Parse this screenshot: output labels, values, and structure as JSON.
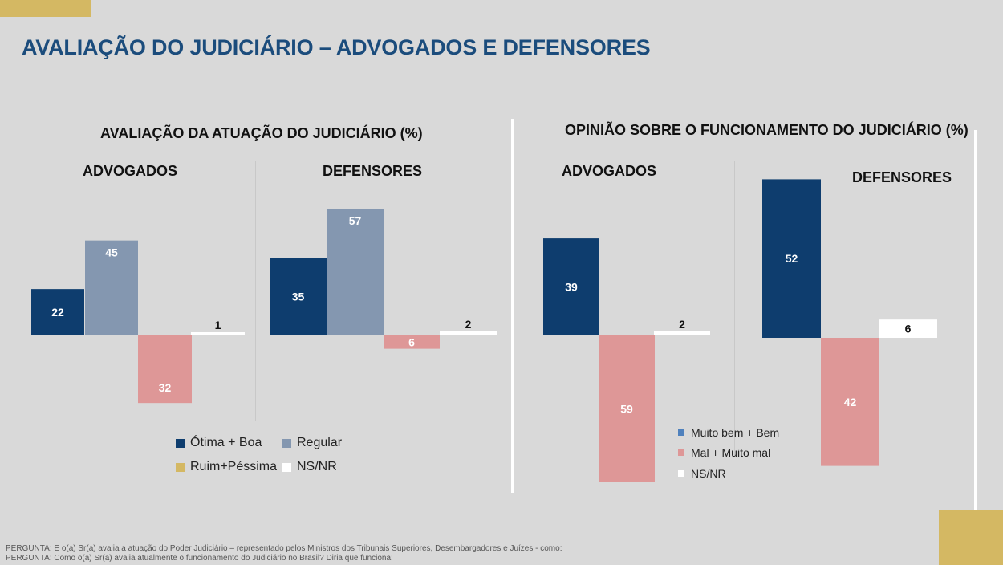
{
  "title": "AVALIAÇÃO DO JUDICIÁRIO – ADVOGADOS E DEFENSORES",
  "colors": {
    "navy": "#0e3d6e",
    "steel": "#8497b0",
    "pink": "#de9797",
    "white": "#ffffff",
    "gold": "#d4b863",
    "blue_light": "#4f81bd"
  },
  "chart_data": [
    {
      "type": "bar",
      "title": "AVALIAÇÃO DA ATUAÇÃO DO JUDICIÁRIO (%)",
      "panels": [
        {
          "name": "ADVOGADOS",
          "bars": [
            {
              "series": "Ótima + Boa",
              "value": 22,
              "direction": "up"
            },
            {
              "series": "Regular",
              "value": 45,
              "direction": "up"
            },
            {
              "series": "Ruim+Péssima",
              "value": 32,
              "direction": "down"
            },
            {
              "series": "NS/NR",
              "value": 1,
              "direction": "up"
            }
          ]
        },
        {
          "name": "DEFENSORES",
          "bars": [
            {
              "series": "Ótima + Boa",
              "value": 35,
              "direction": "up"
            },
            {
              "series": "Regular",
              "value": 57,
              "direction": "up"
            },
            {
              "series": "Ruim+Péssima",
              "value": 6,
              "direction": "down"
            },
            {
              "series": "NS/NR",
              "value": 2,
              "direction": "up"
            }
          ]
        }
      ],
      "legend": [
        {
          "label": "Ótima + Boa",
          "color": "#0e3d6e"
        },
        {
          "label": "Regular",
          "color": "#8497b0"
        },
        {
          "label": "Ruim+Péssima",
          "color": "#d4b863"
        },
        {
          "label": "NS/NR",
          "color": "#ffffff"
        }
      ],
      "legend_position": "bottom"
    },
    {
      "type": "bar",
      "title": "OPINIÃO SOBRE O FUNCIONAMENTO DO JUDICIÁRIO (%)",
      "panels": [
        {
          "name": "ADVOGADOS",
          "bars": [
            {
              "series": "Muito bem + Bem",
              "value": 39,
              "direction": "up"
            },
            {
              "series": "Mal + Muito mal",
              "value": 59,
              "direction": "down"
            },
            {
              "series": "NS/NR",
              "value": 2,
              "direction": "up"
            }
          ]
        },
        {
          "name": "DEFENSORES",
          "bars": [
            {
              "series": "Muito bem + Bem",
              "value": 52,
              "direction": "up"
            },
            {
              "series": "Mal + Muito mal",
              "value": 42,
              "direction": "down"
            },
            {
              "series": "NS/NR",
              "value": 6,
              "direction": "up"
            }
          ]
        }
      ],
      "legend": [
        {
          "label": "Muito bem + Bem",
          "color": "#4f81bd"
        },
        {
          "label": "Mal + Muito mal",
          "color": "#de9797"
        },
        {
          "label": "NS/NR",
          "color": "#ffffff"
        }
      ],
      "legend_position": "bottom-center"
    }
  ],
  "footnotes": [
    "PERGUNTA: E o(a) Sr(a) avalia a atuação do Poder Judiciário – representado pelos Ministros dos Tribunais Superiores, Desembargadores e Juízes - como:",
    "PERGUNTA: Como o(a) Sr(a) avalia atualmente o funcionamento do Judiciário no Brasil? Diria que funciona:"
  ]
}
